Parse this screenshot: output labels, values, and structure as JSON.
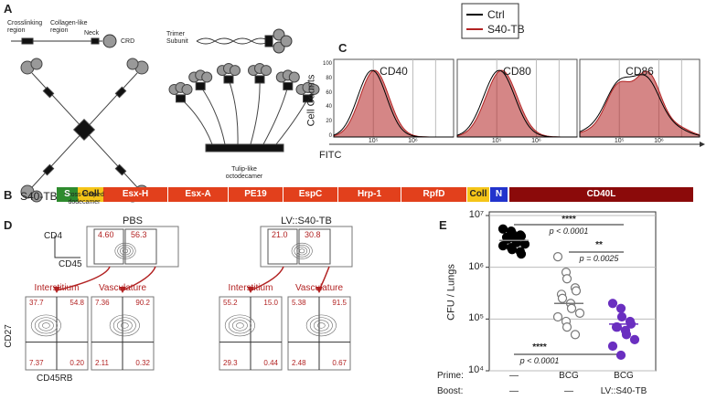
{
  "panel_labels": [
    "A",
    "B",
    "C",
    "D",
    "E"
  ],
  "panel_a": {
    "crosslinking": "Crosslinking region",
    "collagen": "Collagen-like region",
    "neck": "Neck",
    "crd": "CRD",
    "trimer": "Trimer Subunit",
    "cross": "Cross-shaped dodecamer",
    "tulip": "Tulip-like octodecamer"
  },
  "panel_b": {
    "label": "S40-TB",
    "segments": [
      {
        "name": "S",
        "color": "#2e8b2e"
      },
      {
        "name": "Coll",
        "color": "#f5c518"
      },
      {
        "name": "Esx-H",
        "color": "#e2401c"
      },
      {
        "name": "Esx-A",
        "color": "#e2401c"
      },
      {
        "name": "PE19",
        "color": "#e2401c"
      },
      {
        "name": "EspC",
        "color": "#e2401c"
      },
      {
        "name": "Hrp-1",
        "color": "#e2401c"
      },
      {
        "name": "RpfD",
        "color": "#e2401c"
      },
      {
        "name": "Coll",
        "color": "#f5c518"
      },
      {
        "name": "N",
        "color": "#2233cc"
      },
      {
        "name": "CD40L",
        "color": "#8b0a0a"
      }
    ]
  },
  "panel_c": {
    "legend": [
      {
        "name": "Ctrl",
        "color": "#000000"
      },
      {
        "name": "S40-TB",
        "color": "#b22222"
      }
    ],
    "titles": [
      "CD40",
      "CD80",
      "CD86"
    ],
    "ylabel": "Cell Counts",
    "xlabel": "FITC",
    "yticks": [
      "100",
      "80",
      "60",
      "40",
      "20",
      "0"
    ],
    "xticks": [
      "10⁵",
      "10⁶"
    ]
  },
  "panel_d": {
    "axis_top": [
      "CD4",
      "CD45"
    ],
    "axis_bottom": [
      "CD27",
      "CD45RB"
    ],
    "groups": [
      {
        "title": "PBS",
        "top_quadrants": [
          "4.60",
          "56.3"
        ],
        "subplots": [
          {
            "title": "Interstitium",
            "quadrants": [
              "37.7",
              "54.8",
              "7.37",
              "0.20"
            ]
          },
          {
            "title": "Vasculature",
            "quadrants": [
              "7.36",
              "90.2",
              "2.11",
              "0.32"
            ]
          }
        ]
      },
      {
        "title": "LV::S40-TB",
        "top_quadrants": [
          "21.0",
          "30.8"
        ],
        "subplots": [
          {
            "title": "Interstitium",
            "quadrants": [
              "55.2",
              "15.0",
              "29.3",
              "0.44"
            ]
          },
          {
            "title": "Vasculature",
            "quadrants": [
              "5.38",
              "91.5",
              "2.48",
              "0.67"
            ]
          }
        ]
      }
    ]
  },
  "chart_data": {
    "type": "scatter",
    "ylabel": "CFU / Lungs",
    "log_y": true,
    "grid": true,
    "ylim": [
      10000,
      10000000
    ],
    "yticks": [
      {
        "value": 10000,
        "label": "10⁴"
      },
      {
        "value": 100000,
        "label": "10⁵"
      },
      {
        "value": 1000000,
        "label": "10⁶"
      },
      {
        "value": 10000000,
        "label": "10⁷"
      }
    ],
    "row_labels": [
      "Prime:",
      "Boost:"
    ],
    "prime": [
      "—",
      "BCG",
      "BCG"
    ],
    "boost": [
      "—",
      "—",
      "LV::S40-TB"
    ],
    "series": [
      {
        "color": "#000000",
        "filled": true,
        "mean": 3300000,
        "values": [
          5500000,
          5000000,
          4500000,
          4200000,
          4000000,
          3800000,
          3500000,
          3300000,
          3000000,
          2800000,
          2600000,
          2400000,
          2200000,
          2000000,
          1800000
        ]
      },
      {
        "color": "#777777",
        "filled": false,
        "mean": 200000,
        "values": [
          1600000,
          800000,
          600000,
          400000,
          350000,
          300000,
          250000,
          200000,
          160000,
          130000,
          110000,
          90000,
          70000,
          50000
        ]
      },
      {
        "color": "#6a2fc0",
        "filled": true,
        "mean": 80000,
        "values": [
          200000,
          160000,
          110000,
          90000,
          80000,
          70000,
          70000,
          60000,
          50000,
          40000,
          30000,
          20000
        ]
      }
    ],
    "annotations": [
      {
        "stars": "****",
        "text": "p < 0.0001"
      },
      {
        "stars": "**",
        "text": "p = 0.0025"
      },
      {
        "stars": "****",
        "text": "p < 0.0001"
      }
    ]
  }
}
